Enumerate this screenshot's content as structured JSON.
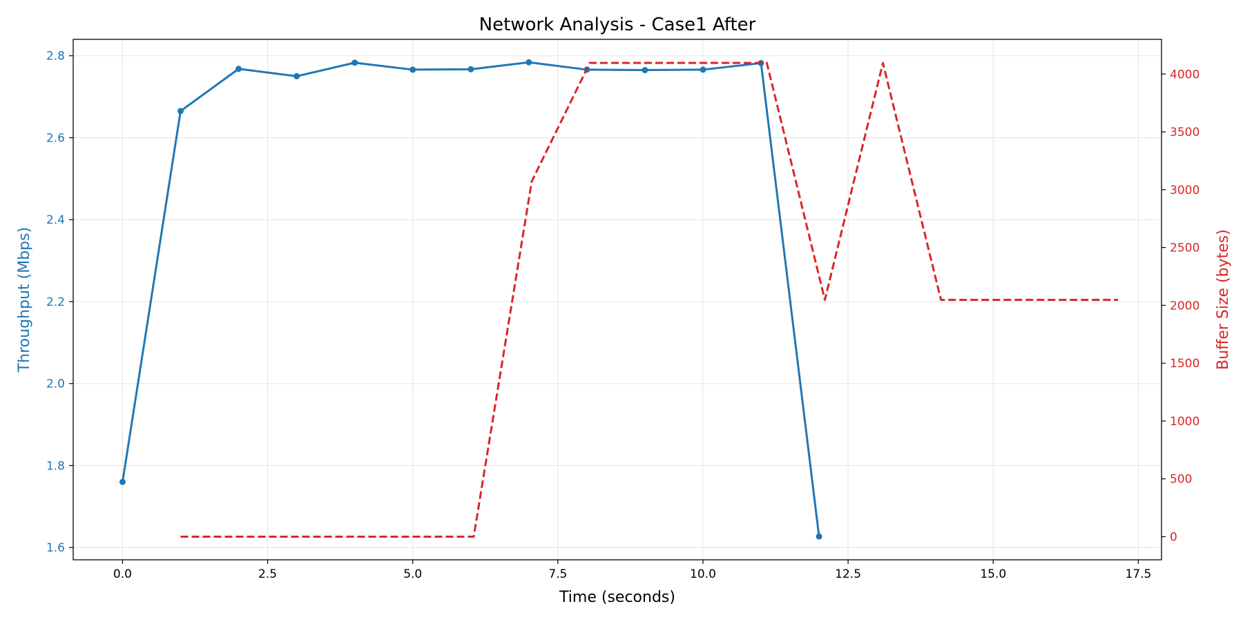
{
  "chart_data": {
    "type": "line",
    "title": "Network Analysis - Case1 After",
    "xlabel": "Time (seconds)",
    "ylabel_left": "Throughput (Mbps)",
    "ylabel_right": "Buffer Size (bytes)",
    "xlim": [
      -0.85,
      17.9
    ],
    "ylim_left": [
      1.57,
      2.84
    ],
    "ylim_right": [
      -200,
      4300
    ],
    "x_ticks": [
      0.0,
      2.5,
      5.0,
      7.5,
      10.0,
      12.5,
      15.0,
      17.5
    ],
    "x_tick_labels": [
      "0.0",
      "2.5",
      "5.0",
      "7.5",
      "10.0",
      "12.5",
      "15.0",
      "17.5"
    ],
    "y_left_ticks": [
      1.6,
      1.8,
      2.0,
      2.2,
      2.4,
      2.6,
      2.8
    ],
    "y_left_tick_labels": [
      "1.6",
      "1.8",
      "2.0",
      "2.2",
      "2.4",
      "2.6",
      "2.8"
    ],
    "y_right_ticks": [
      0,
      500,
      1000,
      1500,
      2000,
      2500,
      3000,
      3500,
      4000
    ],
    "y_right_tick_labels": [
      "0",
      "500",
      "1000",
      "1500",
      "2000",
      "2500",
      "3000",
      "3500",
      "4000"
    ],
    "grid": true,
    "legend": "none",
    "series": [
      {
        "axis": "left",
        "style": "solid-markers",
        "color": "#1f77b4",
        "x": [
          0,
          1,
          2,
          3,
          4,
          5,
          6,
          7,
          8,
          9,
          10,
          11,
          12
        ],
        "values": [
          1.76,
          2.665,
          2.768,
          2.75,
          2.783,
          2.766,
          2.767,
          2.784,
          2.766,
          2.765,
          2.766,
          2.782,
          1.627
        ]
      },
      {
        "axis": "right",
        "style": "dashed",
        "color": "#d62728",
        "x": [
          1.0,
          6.05,
          7.05,
          8.05,
          11.1,
          12.1,
          13.1,
          14.1,
          17.15
        ],
        "values": [
          0,
          0,
          3072,
          4096,
          4096,
          2048,
          4096,
          2048,
          2048
        ]
      }
    ]
  }
}
